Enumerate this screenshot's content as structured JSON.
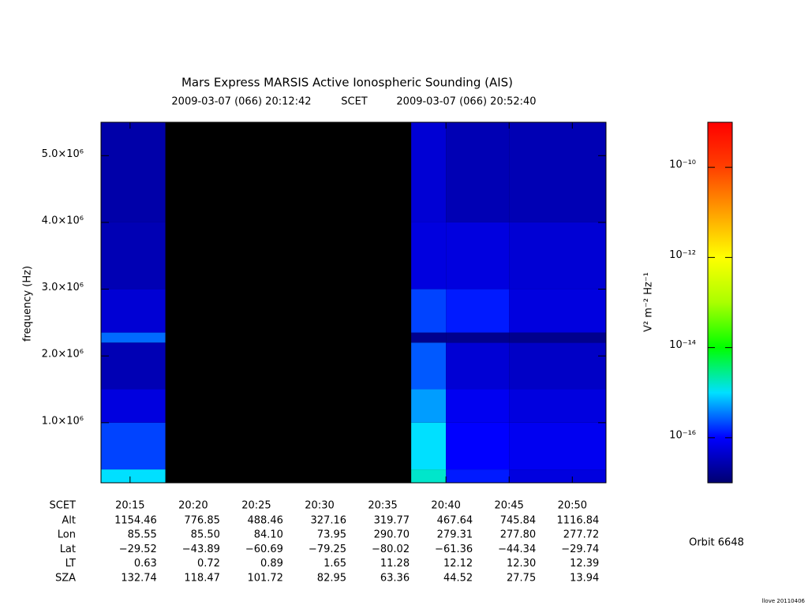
{
  "chart_data": {
    "type": "heatmap",
    "title": "Mars Express MARSIS Active Ionospheric Sounding (AIS)",
    "subtitle_start": "2009-03-07 (066) 20:12:42",
    "subtitle_mid": "SCET",
    "subtitle_end": "2009-03-07 (066) 20:52:40",
    "ylabel": "frequency (Hz)",
    "xlim": [
      72762,
      75160
    ],
    "xticks": [
      {
        "value": 72900,
        "label": "20:15"
      },
      {
        "value": 73200,
        "label": "20:20"
      },
      {
        "value": 73500,
        "label": "20:25"
      },
      {
        "value": 73800,
        "label": "20:30"
      },
      {
        "value": 74100,
        "label": "20:35"
      },
      {
        "value": 74400,
        "label": "20:40"
      },
      {
        "value": 74700,
        "label": "20:45"
      },
      {
        "value": 75000,
        "label": "20:50"
      }
    ],
    "ylim": [
      100000,
      5500000
    ],
    "yticks": [
      {
        "value": 1000000,
        "label": "1.0×10⁶"
      },
      {
        "value": 2000000,
        "label": "2.0×10⁶"
      },
      {
        "value": 3000000,
        "label": "3.0×10⁶"
      },
      {
        "value": 4000000,
        "label": "4.0×10⁶"
      },
      {
        "value": 5000000,
        "label": "5.0×10⁶"
      }
    ],
    "x_edges": [
      72762,
      73068,
      74235,
      74400,
      74700,
      75160
    ],
    "y_edges": [
      100000,
      300000,
      1000000,
      1500000,
      2200000,
      2350000,
      3000000,
      4000000,
      5500000
    ],
    "z": [
      [
        1e-15,
        null,
        1.6e-15,
        1.3e-16,
        6e-17
      ],
      [
        2e-16,
        null,
        1e-15,
        1e-16,
        8e-17
      ],
      [
        6e-17,
        null,
        5e-16,
        8e-17,
        6e-17
      ],
      [
        3e-17,
        null,
        2.5e-16,
        5e-17,
        4e-17
      ],
      [
        3e-16,
        null,
        1.6e-17,
        1.6e-17,
        1.6e-17
      ],
      [
        5e-17,
        null,
        2e-16,
        1.3e-16,
        6e-17
      ],
      [
        3e-17,
        null,
        6e-17,
        6e-17,
        5e-17
      ],
      [
        2.5e-17,
        null,
        5e-17,
        3e-17,
        3e-17
      ]
    ],
    "colorbar_label": "V² m⁻² Hz⁻¹",
    "colorbar_log": true,
    "colorbar_lim": [
      1e-17,
      1e-09
    ],
    "colorbar_ticks": [
      {
        "value": 1e-10,
        "label": "10⁻¹⁰"
      },
      {
        "value": 1e-12,
        "label": "10⁻¹²"
      },
      {
        "value": 1e-14,
        "label": "10⁻¹⁴"
      },
      {
        "value": 1e-16,
        "label": "10⁻¹⁶"
      }
    ],
    "table": {
      "scet_label": "SCET",
      "rows": [
        {
          "label": "Alt",
          "values": [
            "1154.46",
            "776.85",
            "488.46",
            "327.16",
            "319.77",
            "467.64",
            "745.84",
            "1116.84"
          ]
        },
        {
          "label": "Lon",
          "values": [
            "85.55",
            "85.50",
            "84.10",
            "73.95",
            "290.70",
            "279.31",
            "277.80",
            "277.72"
          ]
        },
        {
          "label": "Lat",
          "values": [
            "−29.52",
            "−43.89",
            "−60.69",
            "−79.25",
            "−80.02",
            "−61.36",
            "−44.34",
            "−29.74"
          ]
        },
        {
          "label": "LT",
          "values": [
            "0.63",
            "0.72",
            "0.89",
            "1.65",
            "11.28",
            "12.12",
            "12.30",
            "12.39"
          ]
        },
        {
          "label": "SZA",
          "values": [
            "132.74",
            "118.47",
            "101.72",
            "82.95",
            "63.36",
            "44.52",
            "27.75",
            "13.94"
          ]
        }
      ]
    },
    "orbit": "Orbit 6648",
    "credit": "llove 20110406"
  }
}
